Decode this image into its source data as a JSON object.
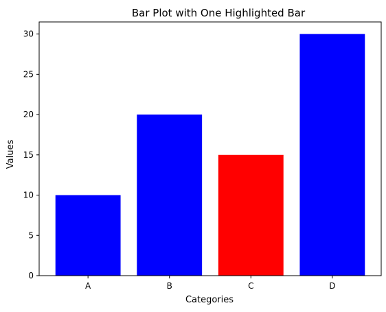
{
  "chart_data": {
    "type": "bar",
    "title": "Bar Plot with One Highlighted Bar",
    "xlabel": "Categories",
    "ylabel": "Values",
    "categories": [
      "A",
      "B",
      "C",
      "D"
    ],
    "values": [
      10,
      20,
      15,
      30
    ],
    "ylim": [
      0,
      31.5
    ],
    "yticks": [
      0,
      5,
      10,
      15,
      20,
      25,
      30
    ],
    "grid": false,
    "colors": {
      "default": "#0000ff",
      "highlight": "#ff0000"
    },
    "highlight_category": "C"
  }
}
